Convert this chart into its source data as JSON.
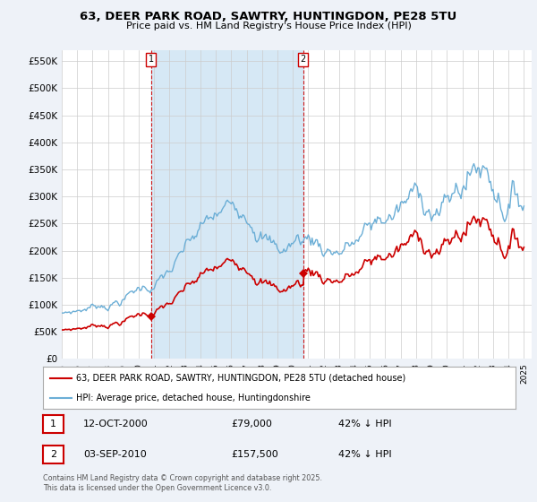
{
  "title": "63, DEER PARK ROAD, SAWTRY, HUNTINGDON, PE28 5TU",
  "subtitle": "Price paid vs. HM Land Registry's House Price Index (HPI)",
  "ylabel_ticks": [
    "£0",
    "£50K",
    "£100K",
    "£150K",
    "£200K",
    "£250K",
    "£300K",
    "£350K",
    "£400K",
    "£450K",
    "£500K",
    "£550K"
  ],
  "ytick_vals": [
    0,
    50000,
    100000,
    150000,
    200000,
    250000,
    300000,
    350000,
    400000,
    450000,
    500000,
    550000
  ],
  "ylim": [
    0,
    570000
  ],
  "hpi_color": "#6baed6",
  "hpi_fill_color": "#d6e8f5",
  "paid_color": "#cc0000",
  "marker1_x": 2000.79,
  "marker1_price": 79000,
  "marker2_x": 2010.67,
  "marker2_price": 157500,
  "legend_label1": "63, DEER PARK ROAD, SAWTRY, HUNTINGDON, PE28 5TU (detached house)",
  "legend_label2": "HPI: Average price, detached house, Huntingdonshire",
  "footer": "Contains HM Land Registry data © Crown copyright and database right 2025.\nThis data is licensed under the Open Government Licence v3.0.",
  "background_color": "#eef2f8",
  "plot_bg_color": "#ffffff"
}
